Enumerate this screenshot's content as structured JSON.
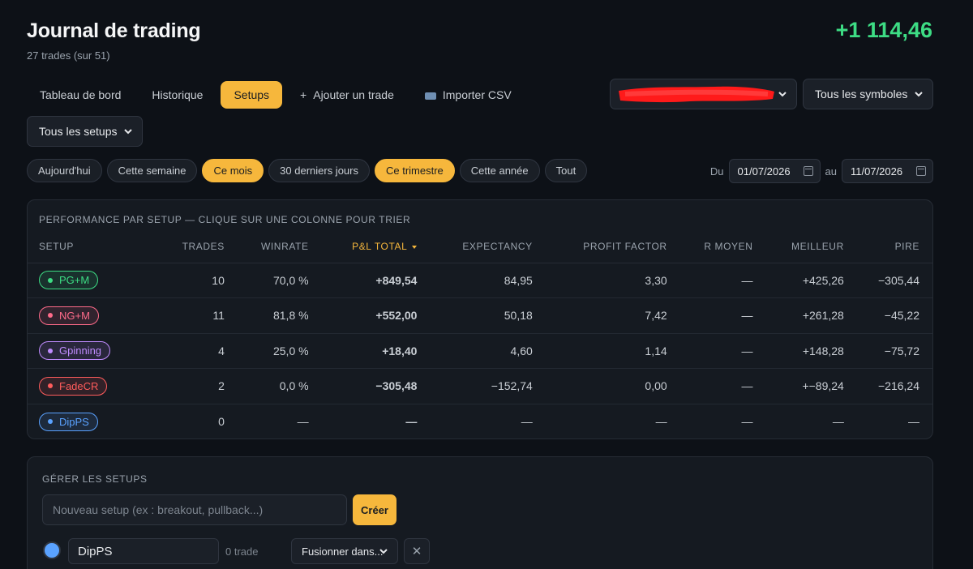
{
  "header": {
    "title": "Journal de trading",
    "subtitle": "27 trades (sur 51)",
    "total_pnl": "+1 114,46"
  },
  "nav": {
    "tabs": [
      {
        "label": "Tableau de bord"
      },
      {
        "label": "Historique"
      },
      {
        "label": "Setups",
        "active": true
      },
      {
        "label": "Ajouter un trade",
        "icon": "plus-icon",
        "glyph": "+"
      },
      {
        "label": "Importer CSV",
        "icon": "import-csv-icon"
      }
    ]
  },
  "filters": {
    "account_select": "",
    "symbols_select": "Tous les symboles",
    "setups_select": "Tous les setups"
  },
  "periods": [
    {
      "label": "Aujourd'hui"
    },
    {
      "label": "Cette semaine"
    },
    {
      "label": "Ce mois",
      "active": true
    },
    {
      "label": "30 derniers jours"
    },
    {
      "label": "Ce trimestre",
      "active": true
    },
    {
      "label": "Cette année"
    },
    {
      "label": "Tout"
    }
  ],
  "date_range": {
    "from_label": "Du",
    "from": "01/07/2026",
    "to_label": "au",
    "to": "11/07/2026"
  },
  "performance": {
    "heading": "PERFORMANCE PAR SETUP — CLIQUE SUR UNE COLONNE POUR TRIER",
    "columns": [
      "SETUP",
      "TRADES",
      "WINRATE",
      "P&L TOTAL",
      "EXPECTANCY",
      "PROFIT FACTOR",
      "R MOYEN",
      "MEILLEUR",
      "PIRE"
    ],
    "sorted_column": "P&L TOTAL",
    "rows": [
      {
        "setup": "PG+M",
        "color": "#3ddc84",
        "trades": "10",
        "winrate": "70,0 %",
        "pnl": "+849,54",
        "expectancy": "84,95",
        "profit_factor": "3,30",
        "r_moyen": "—",
        "best": "+425,26",
        "worst": "−305,44",
        "tones": [
          "",
          "pos",
          "pos",
          "pos",
          "pos",
          "muted",
          "pos",
          "neg"
        ]
      },
      {
        "setup": "NG+M",
        "color": "#ff6b8a",
        "trades": "11",
        "winrate": "81,8 %",
        "pnl": "+552,00",
        "expectancy": "50,18",
        "profit_factor": "7,42",
        "r_moyen": "—",
        "best": "+261,28",
        "worst": "−45,22",
        "tones": [
          "",
          "pos",
          "pos",
          "pos",
          "pos",
          "muted",
          "pos",
          "neg"
        ]
      },
      {
        "setup": "Gpinning",
        "color": "#c08cff",
        "trades": "4",
        "winrate": "25,0 %",
        "pnl": "+18,40",
        "expectancy": "4,60",
        "profit_factor": "1,14",
        "r_moyen": "—",
        "best": "+148,28",
        "worst": "−75,72",
        "tones": [
          "",
          "neg",
          "pos",
          "pos",
          "warn",
          "muted",
          "pos",
          "neg"
        ]
      },
      {
        "setup": "FadeCR",
        "color": "#ff5c5c",
        "trades": "2",
        "winrate": "0,0 %",
        "pnl": "−305,48",
        "expectancy": "−152,74",
        "profit_factor": "0,00",
        "r_moyen": "—",
        "best": "+−89,24",
        "worst": "−216,24",
        "tones": [
          "",
          "neg",
          "neg",
          "neg",
          "neg",
          "muted",
          "pos",
          "neg"
        ]
      },
      {
        "setup": "DipPS",
        "color": "#5aa2ff",
        "trades": "0",
        "winrate": "—",
        "pnl": "—",
        "expectancy": "—",
        "profit_factor": "—",
        "r_moyen": "—",
        "best": "—",
        "worst": "—",
        "tones": [
          "",
          "muted",
          "muted",
          "muted",
          "muted",
          "muted",
          "muted",
          "muted"
        ]
      }
    ]
  },
  "manage": {
    "heading": "GÉRER LES SETUPS",
    "new_placeholder": "Nouveau setup (ex : breakout, pullback...)",
    "create_label": "Créer",
    "setup_item": {
      "color": "#5aa2ff",
      "name": "DipPS",
      "trade_count": "0 trade",
      "merge_label": "Fusionner dans...",
      "delete_glyph": "✕"
    }
  }
}
